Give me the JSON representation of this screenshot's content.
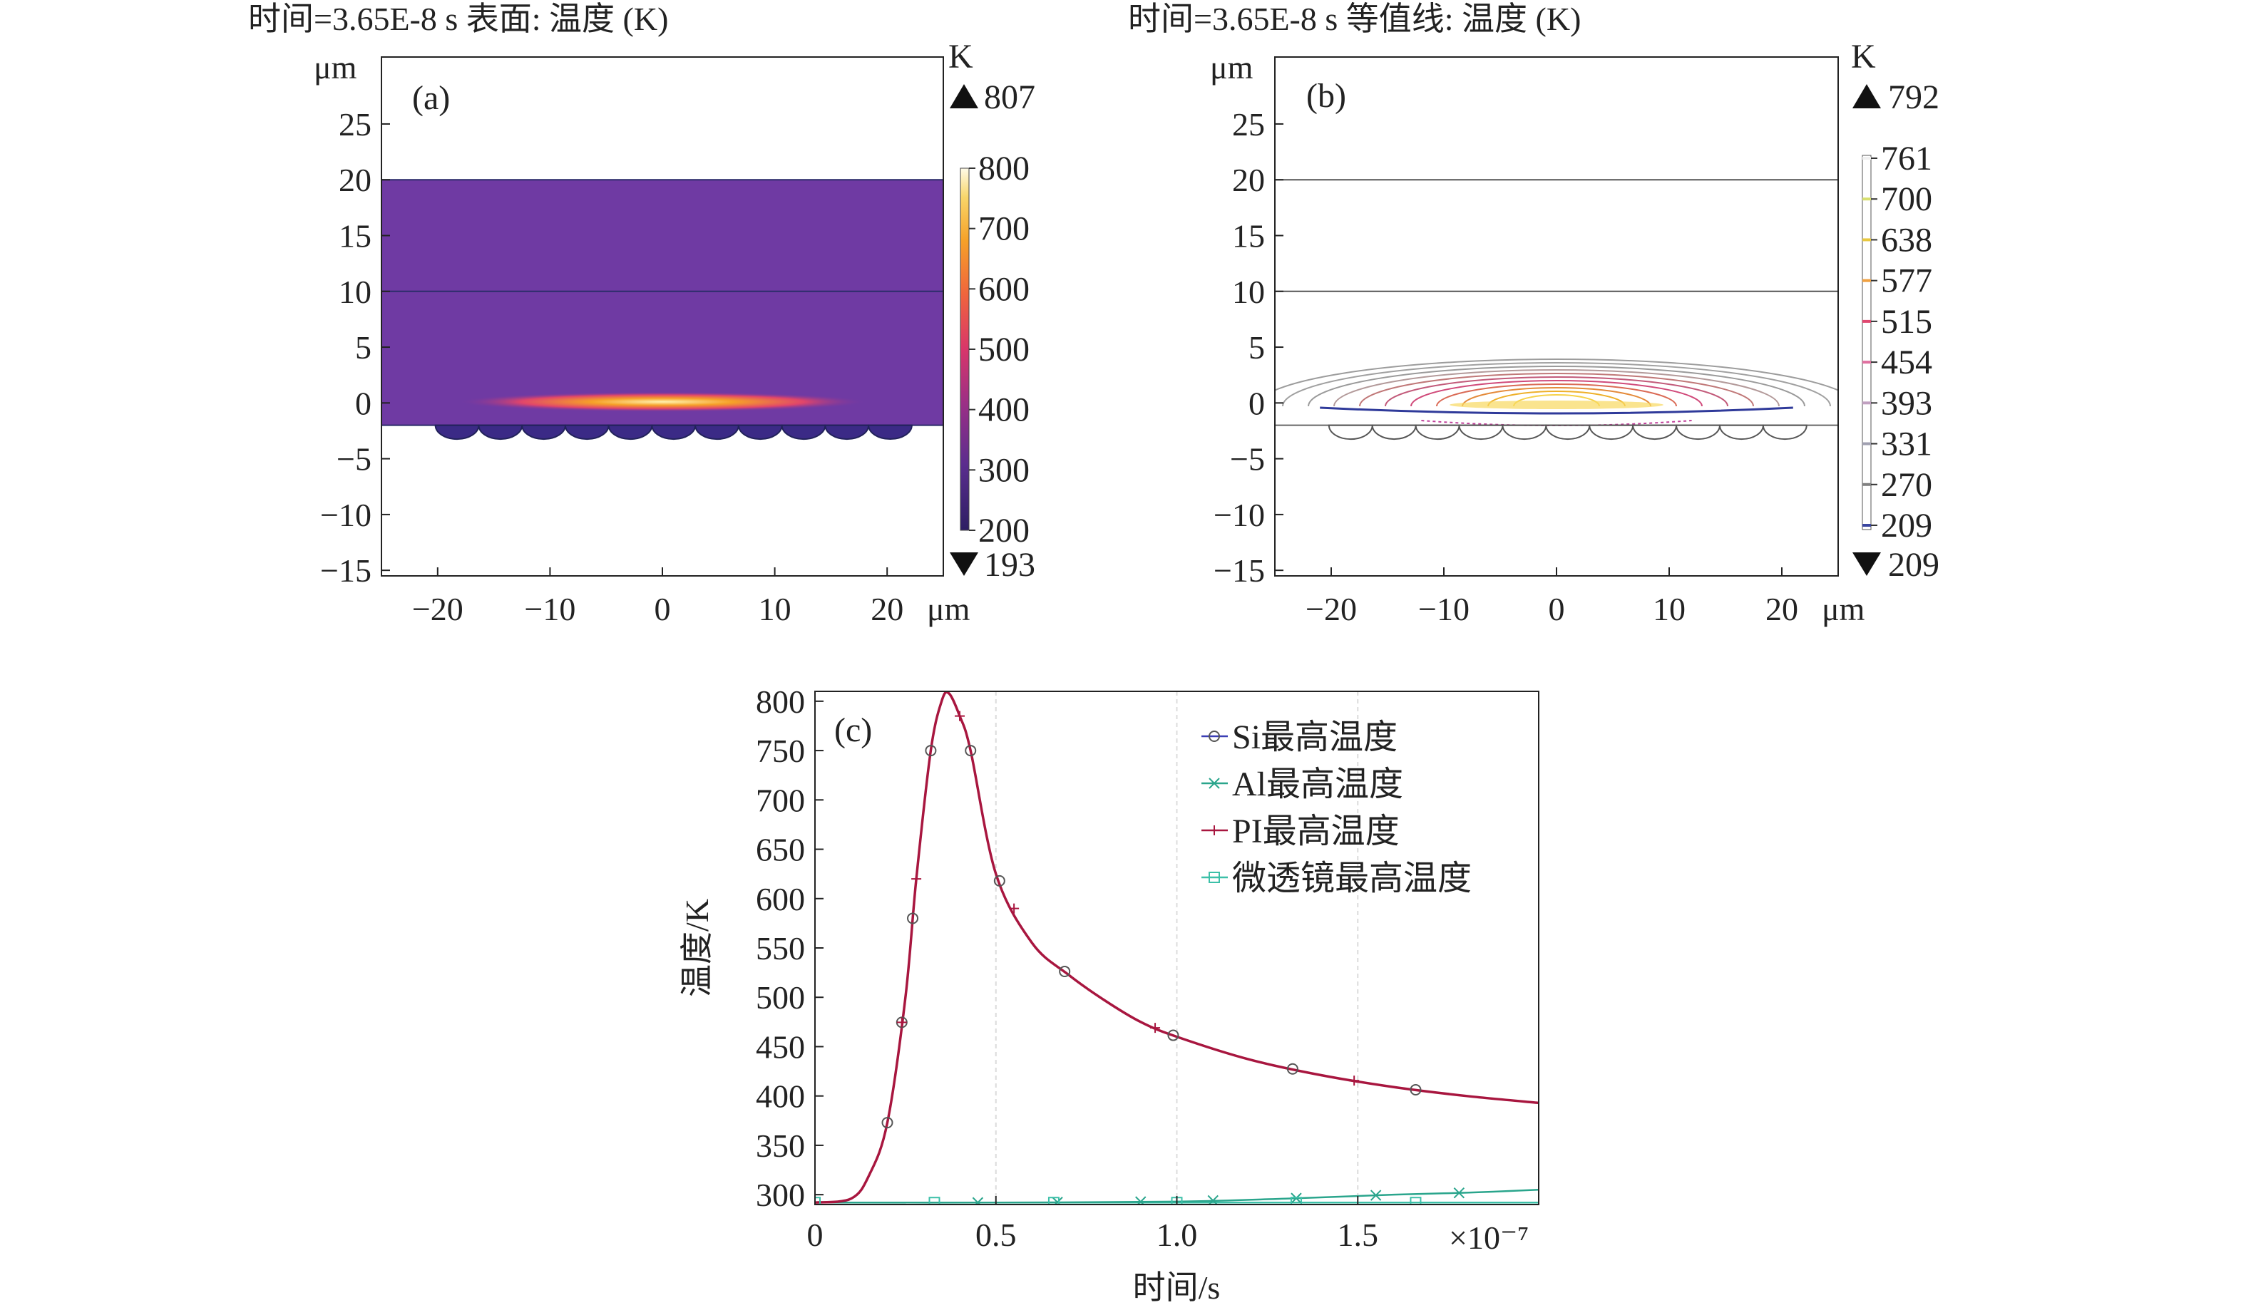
{
  "chart_data": [
    {
      "type": "heatmap",
      "panel": "(a)",
      "title": "时间=3.65E-8 s   表面: 温度 (K)",
      "x_unit": "μm",
      "y_unit": "μm",
      "xticks": [
        -20,
        -10,
        0,
        10,
        20
      ],
      "yticks": [
        25,
        20,
        15,
        10,
        5,
        0,
        -5,
        -10,
        -15
      ],
      "xlim": [
        -25,
        25
      ],
      "ylim": [
        -15.5,
        31
      ],
      "layers": [
        {
          "from": -2,
          "to": 10
        },
        {
          "from": 10,
          "to": 20
        }
      ],
      "microlens_count": 11,
      "colorbar": {
        "unit": "K",
        "max_label": "807",
        "min_label": "193",
        "ticks": [
          "800",
          "700",
          "600",
          "500",
          "400",
          "300",
          "200"
        ]
      }
    },
    {
      "type": "contour",
      "panel": "(b)",
      "title": "时间=3.65E-8 s   等值线: 温度 (K)",
      "x_unit": "μm",
      "y_unit": "μm",
      "xticks": [
        -20,
        -10,
        0,
        10,
        20
      ],
      "yticks": [
        25,
        20,
        15,
        10,
        5,
        0,
        -5,
        -10,
        -15
      ],
      "xlim": [
        -25,
        25
      ],
      "ylim": [
        -15.5,
        31
      ],
      "colorbar": {
        "unit": "K",
        "max_label": "792",
        "min_label": "209",
        "ticks": [
          "761",
          "700",
          "638",
          "577",
          "515",
          "454",
          "393",
          "331",
          "270",
          "209"
        ]
      }
    },
    {
      "type": "line",
      "panel": "(c)",
      "xlabel": "时间/s",
      "ylabel": "温度/K",
      "x_multiplier": "×10⁻⁷",
      "xlim": [
        0,
        2.0
      ],
      "ylim": [
        290,
        810
      ],
      "xticks": [
        "0",
        "0.5",
        "1.0",
        "1.5"
      ],
      "yticks": [
        "800",
        "750",
        "700",
        "650",
        "600",
        "550",
        "500",
        "450",
        "400",
        "350",
        "300"
      ],
      "legend_position": "top-right",
      "series": [
        {
          "name": "Si最高温度",
          "color": "#3b3fb4",
          "marker": "circle",
          "x": [
            0,
            0.1,
            0.15,
            0.2,
            0.25,
            0.28,
            0.32,
            0.35,
            0.37,
            0.4,
            0.43,
            0.5,
            0.6,
            0.7,
            0.8,
            0.9,
            1.0,
            1.2,
            1.4,
            1.6,
            1.8,
            2.0
          ],
          "y": [
            292,
            296,
            320,
            373,
            500,
            620,
            750,
            800,
            808,
            785,
            750,
            625,
            555,
            523,
            497,
            475,
            460,
            437,
            421,
            409,
            400,
            393
          ]
        },
        {
          "name": "Al最高温度",
          "color": "#2aa58c",
          "marker": "x",
          "x": [
            0,
            0.5,
            1.0,
            1.3,
            1.6,
            1.8,
            2.0
          ],
          "y": [
            292,
            292,
            293,
            296,
            300,
            302,
            305
          ]
        },
        {
          "name": "PI最高温度",
          "color": "#a8163f",
          "marker": "plus",
          "x": [
            0,
            0.1,
            0.15,
            0.2,
            0.25,
            0.28,
            0.32,
            0.35,
            0.37,
            0.4,
            0.43,
            0.5,
            0.6,
            0.7,
            0.8,
            0.9,
            1.0,
            1.2,
            1.4,
            1.6,
            1.8,
            2.0
          ],
          "y": [
            292,
            296,
            320,
            373,
            500,
            620,
            750,
            800,
            808,
            785,
            750,
            625,
            555,
            523,
            497,
            475,
            460,
            437,
            421,
            409,
            400,
            393
          ]
        },
        {
          "name": "微透镜最高温度",
          "color": "#3cc0a8",
          "marker": "square",
          "x": [
            0,
            0.5,
            1.0,
            1.5,
            2.0
          ],
          "y": [
            292,
            292,
            292,
            292,
            292
          ]
        }
      ]
    }
  ]
}
